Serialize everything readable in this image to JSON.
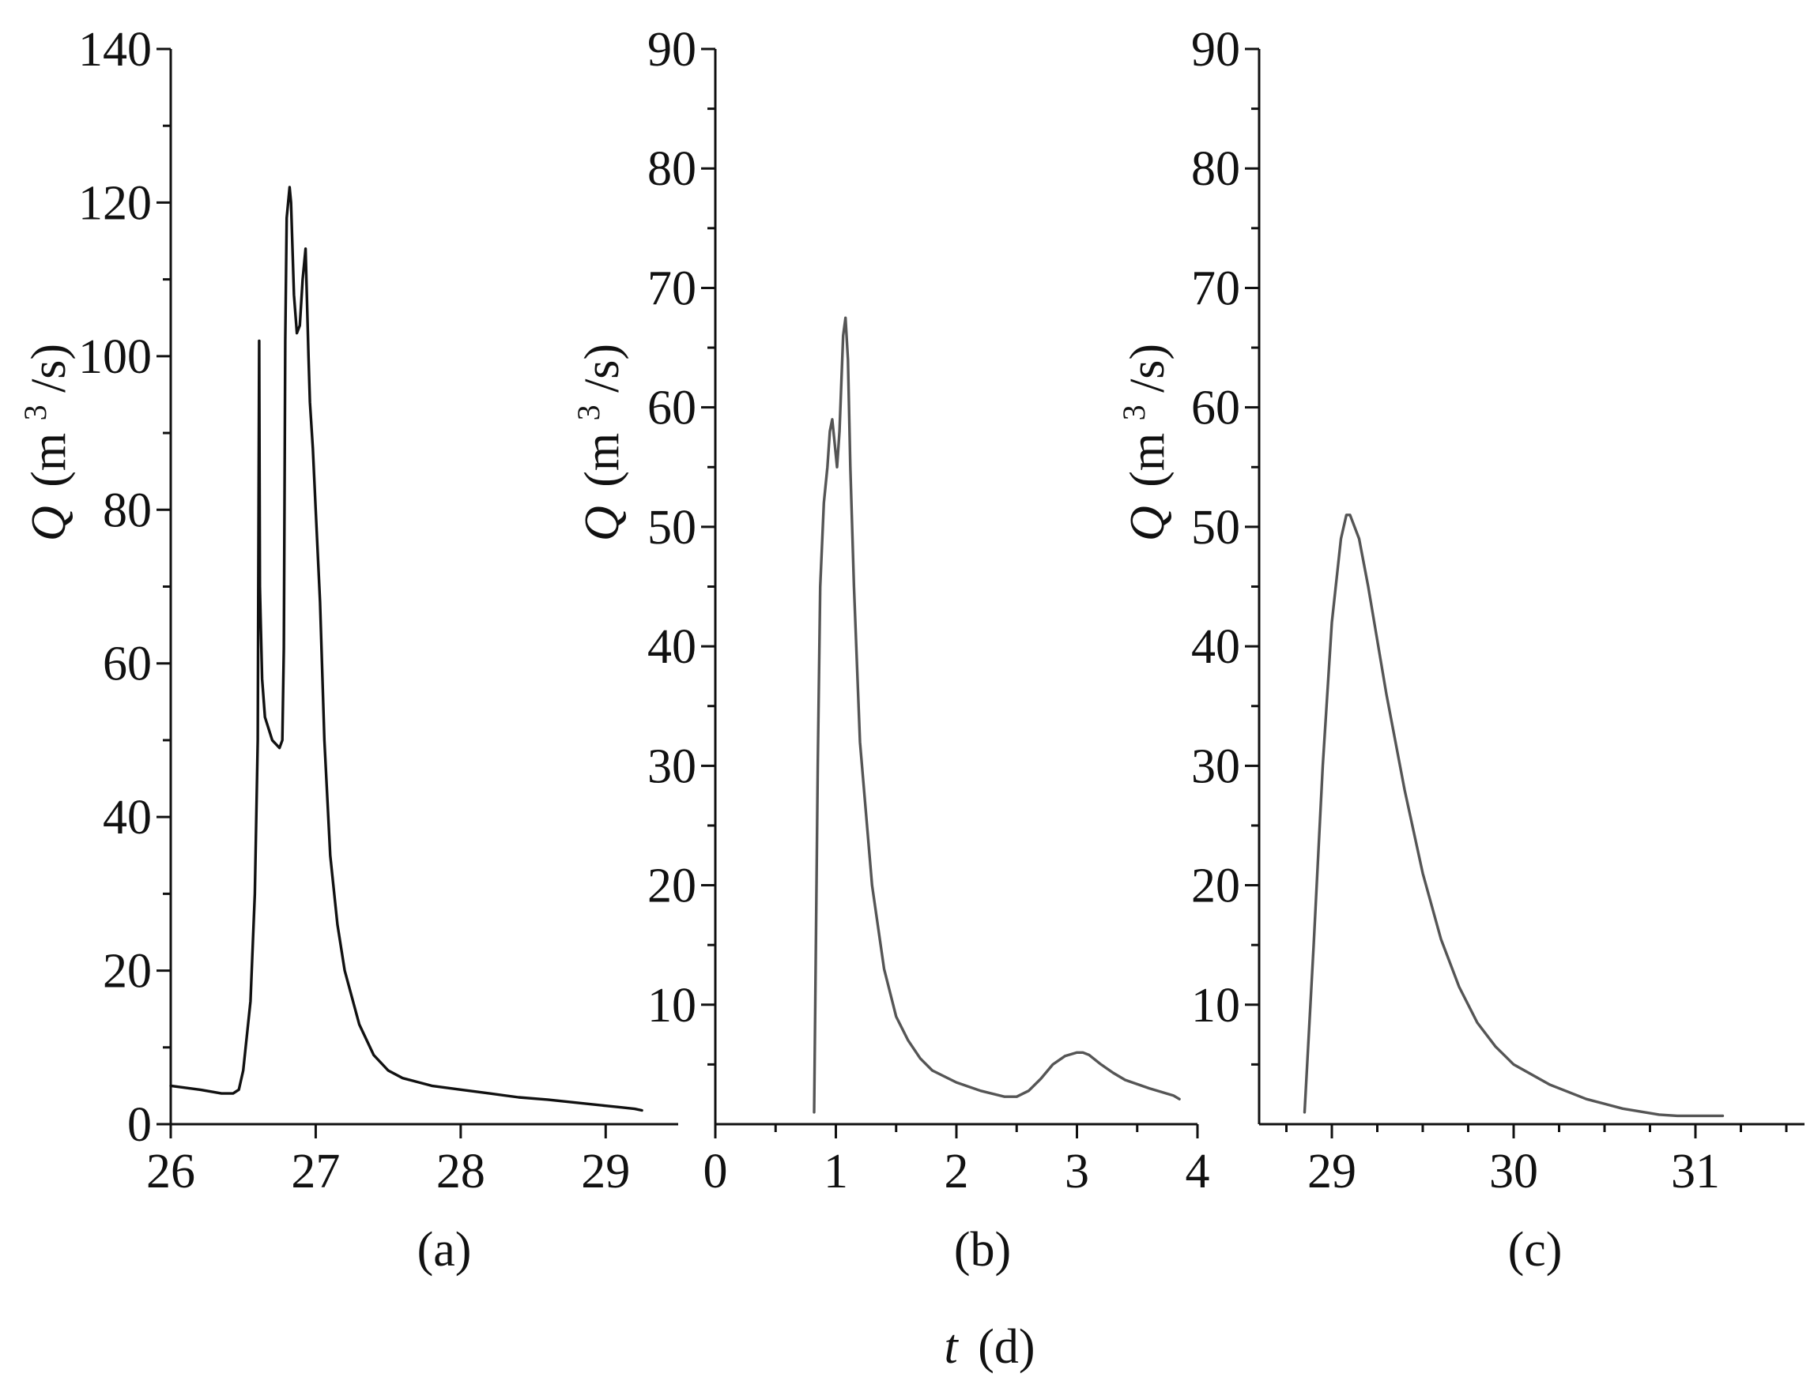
{
  "figure": {
    "xlabel_var": "t",
    "xlabel_unit": "(d)",
    "ylabel_var": "Q",
    "ylabel_unit_pre": "(m",
    "ylabel_unit_sup": "3",
    "ylabel_unit_post": "/s)"
  },
  "chart_data": [
    {
      "type": "line",
      "panel_label": "(a)",
      "xlabel": "",
      "ylabel": "Q (m³/s)",
      "xlim": [
        26,
        29.5
      ],
      "ylim": [
        0,
        140
      ],
      "xticks": [
        26,
        27,
        28,
        29
      ],
      "yticks": [
        0,
        20,
        40,
        60,
        80,
        100,
        120,
        140
      ],
      "yminor": 10,
      "xminor": null,
      "color": "#111111",
      "series": [
        {
          "x": [
            26.0,
            26.2,
            26.35,
            26.43,
            26.47,
            26.5,
            26.55,
            26.58,
            26.6,
            26.61,
            26.615,
            26.62,
            26.63,
            26.65,
            26.7,
            26.75,
            26.77,
            26.78,
            26.79,
            26.8,
            26.82,
            26.83,
            26.85,
            26.87,
            26.89,
            26.91,
            26.93,
            26.95,
            26.96,
            26.98,
            27.0,
            27.03,
            27.06,
            27.1,
            27.15,
            27.2,
            27.3,
            27.4,
            27.5,
            27.6,
            27.7,
            27.8,
            28.0,
            28.2,
            28.4,
            28.6,
            28.8,
            29.0,
            29.1,
            29.2,
            29.25
          ],
          "y": [
            5,
            4.5,
            4,
            4,
            4.5,
            7,
            16,
            30,
            50,
            102,
            70,
            66,
            58,
            53,
            50,
            49,
            50,
            62,
            102,
            118,
            122,
            120,
            108,
            103,
            104,
            110,
            114,
            100,
            94,
            88,
            80,
            68,
            50,
            35,
            26,
            20,
            13,
            9,
            7,
            6,
            5.5,
            5,
            4.5,
            4,
            3.5,
            3.2,
            2.8,
            2.4,
            2.2,
            2.0,
            1.8
          ]
        }
      ]
    },
    {
      "type": "line",
      "panel_label": "(b)",
      "xlabel": "",
      "ylabel": "Q (m³/s)",
      "xlim": [
        0,
        4
      ],
      "ylim": [
        0,
        90
      ],
      "xticks": [
        0,
        1,
        2,
        3,
        4
      ],
      "yticks": [
        10,
        20,
        30,
        40,
        50,
        60,
        70,
        80,
        90
      ],
      "yminor": 5,
      "xminor": 0.5,
      "color": "#555555",
      "series": [
        {
          "x": [
            0.82,
            0.85,
            0.87,
            0.9,
            0.93,
            0.95,
            0.97,
            0.99,
            1.01,
            1.03,
            1.06,
            1.08,
            1.1,
            1.12,
            1.15,
            1.2,
            1.3,
            1.4,
            1.5,
            1.6,
            1.7,
            1.8,
            2.0,
            2.2,
            2.4,
            2.5,
            2.6,
            2.7,
            2.8,
            2.9,
            3.0,
            3.05,
            3.1,
            3.2,
            3.3,
            3.4,
            3.6,
            3.8,
            3.85
          ],
          "y": [
            1,
            30,
            45,
            52,
            55,
            58,
            59,
            57,
            55,
            58,
            66,
            67.5,
            64,
            55,
            45,
            32,
            20,
            13,
            9,
            7,
            5.5,
            4.5,
            3.5,
            2.8,
            2.3,
            2.3,
            2.8,
            3.8,
            5,
            5.7,
            6,
            6,
            5.8,
            5,
            4.3,
            3.7,
            3,
            2.4,
            2.1
          ]
        }
      ]
    },
    {
      "type": "line",
      "panel_label": "(c)",
      "xlabel": "",
      "ylabel": "Q (m³/s)",
      "xlim": [
        28.6,
        31.6
      ],
      "ylim": [
        0,
        90
      ],
      "xticks": [
        29,
        30,
        31
      ],
      "yticks": [
        10,
        20,
        30,
        40,
        50,
        60,
        70,
        80,
        90
      ],
      "yminor": 5,
      "xminor": 0.25,
      "color": "#555555",
      "series": [
        {
          "x": [
            28.85,
            28.9,
            28.95,
            29.0,
            29.05,
            29.08,
            29.1,
            29.15,
            29.2,
            29.3,
            29.4,
            29.5,
            29.6,
            29.7,
            29.8,
            29.9,
            30.0,
            30.2,
            30.4,
            30.6,
            30.8,
            30.9,
            31.0,
            31.1,
            31.15
          ],
          "y": [
            1,
            15,
            30,
            42,
            49,
            51,
            51,
            49,
            45,
            36,
            28,
            21,
            15.5,
            11.5,
            8.5,
            6.5,
            5,
            3.3,
            2.1,
            1.3,
            0.8,
            0.7,
            0.7,
            0.7,
            0.7
          ]
        }
      ]
    }
  ]
}
